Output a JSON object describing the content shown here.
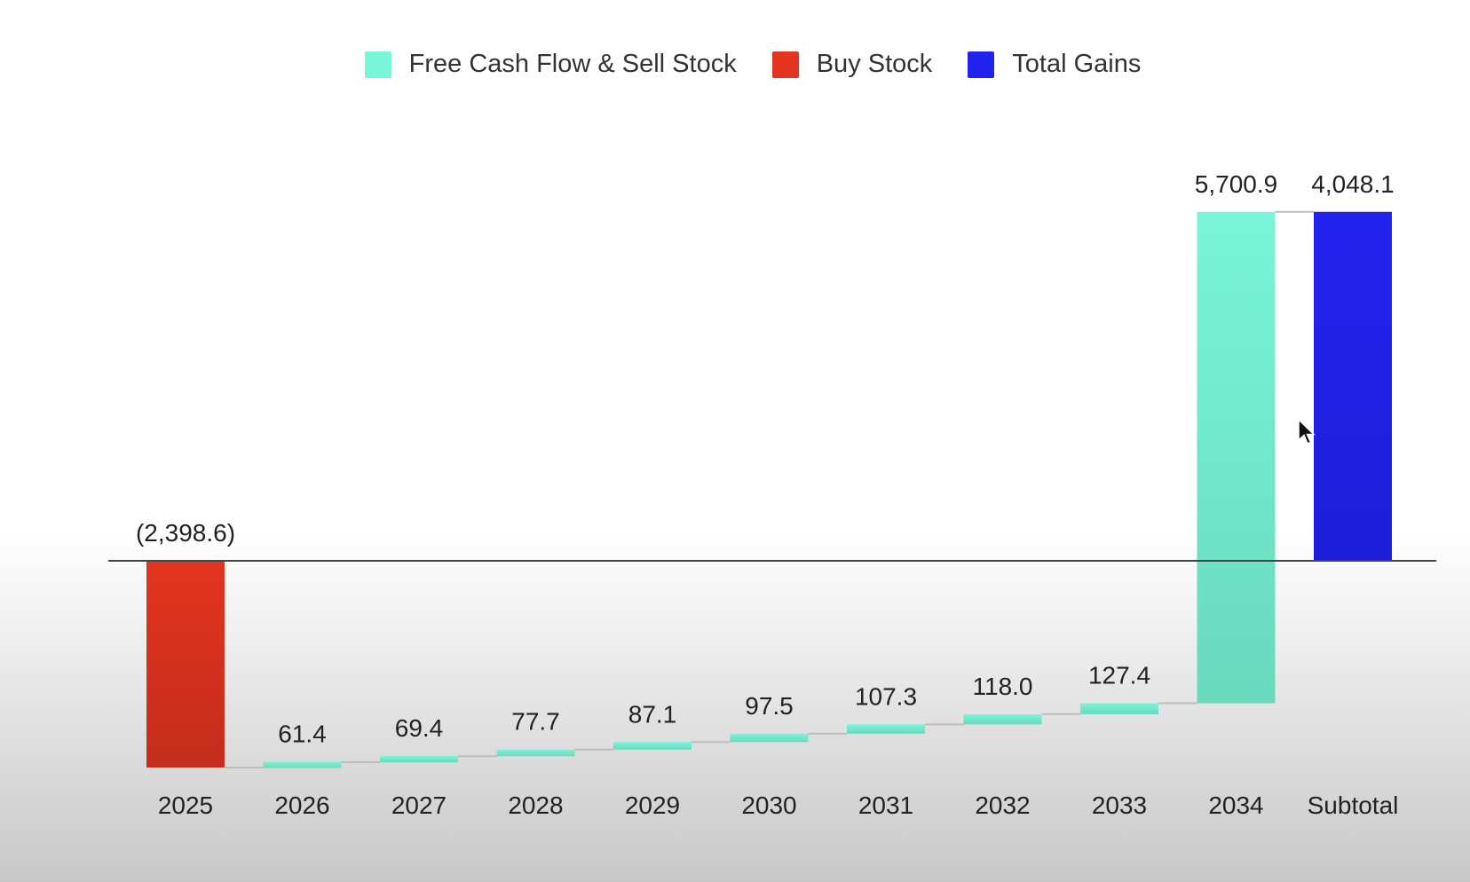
{
  "chart_data": {
    "type": "waterfall",
    "title": "",
    "xlabel": "",
    "ylabel": "",
    "legend": {
      "placement": "top-center",
      "items": [
        {
          "key": "increase",
          "label": "Free Cash Flow & Sell Stock",
          "color": "#79F5D8"
        },
        {
          "key": "decrease",
          "label": "Buy Stock",
          "color": "#E2341F"
        },
        {
          "key": "total",
          "label": "Total Gains",
          "color": "#2222EE"
        }
      ]
    },
    "categories": [
      "2025",
      "2026",
      "2027",
      "2028",
      "2029",
      "2030",
      "2031",
      "2032",
      "2033",
      "2034",
      "Subtotal"
    ],
    "values": [
      -2398.6,
      61.4,
      69.4,
      77.7,
      87.1,
      97.5,
      107.3,
      118.0,
      127.4,
      5700.9,
      4048.1
    ],
    "kinds": [
      "decrease",
      "increase",
      "increase",
      "increase",
      "increase",
      "increase",
      "increase",
      "increase",
      "increase",
      "increase",
      "total"
    ],
    "data_labels": [
      "(2,398.6)",
      "61.4",
      "69.4",
      "77.7",
      "87.1",
      "97.5",
      "107.3",
      "118.0",
      "127.4",
      "5,700.9",
      "4,048.1"
    ],
    "ylim": [
      -2400,
      4100
    ],
    "grid": false
  }
}
